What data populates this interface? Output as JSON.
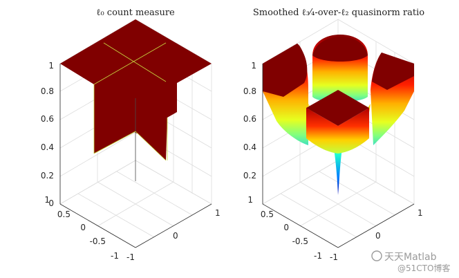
{
  "chart_data": [
    {
      "type": "surface",
      "title": "ℓ₀ count measure",
      "xlabel": "",
      "ylabel": "",
      "zlabel": "",
      "xlim": [
        -1,
        1
      ],
      "ylim": [
        -1,
        1
      ],
      "zlim": [
        0,
        1
      ],
      "x_ticks": [
        "-1",
        "0",
        "1"
      ],
      "y_ticks": [
        "-1",
        "-0.5",
        "0",
        "0.5",
        "1"
      ],
      "z_ticks": [
        "0",
        "0.2",
        "0.4",
        "0.6",
        "0.8",
        "1"
      ],
      "colormap": "jet",
      "grid": true,
      "notes_values": {
        "off_axes": 1,
        "on_one_axis": 0.5,
        "origin": 0
      }
    },
    {
      "type": "surface",
      "title": "Smoothed ℓ₃⁄₄-over-ℓ₂ quasinorm ratio",
      "xlabel": "",
      "ylabel": "",
      "zlabel": "",
      "xlim": [
        -1,
        1
      ],
      "ylim": [
        -1,
        1
      ],
      "zlim": [
        0,
        1
      ],
      "x_ticks": [
        "-1",
        "0",
        "1"
      ],
      "y_ticks": [
        "-1",
        "-0.5",
        "0",
        "0.5",
        "1"
      ],
      "z_ticks": [
        "0.2",
        "0.4",
        "0.6",
        "0.8",
        "1"
      ],
      "colormap": "jet",
      "grid": true
    }
  ],
  "watermark": {
    "text1": "天天Matlab",
    "text2": "@51CTO博客"
  }
}
